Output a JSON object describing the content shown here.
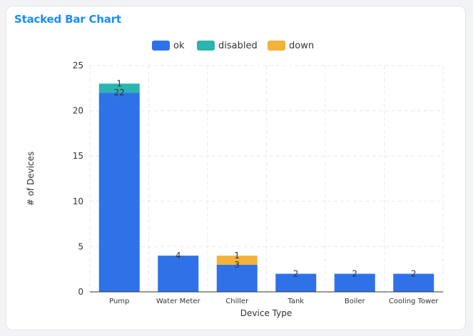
{
  "card": {
    "title": "Stacked Bar Chart"
  },
  "chart_data": {
    "type": "bar",
    "stacked": true,
    "title": "Stacked Bar Chart",
    "xlabel": "Device Type",
    "ylabel": "# of Devices",
    "categories": [
      "Pump",
      "Water Meter",
      "Chiller",
      "Tank",
      "Boiler",
      "Cooling Tower"
    ],
    "series": [
      {
        "name": "ok",
        "color": "#2f72e8",
        "values": [
          22,
          4,
          3,
          2,
          2,
          2
        ]
      },
      {
        "name": "disabled",
        "color": "#2bb5b1",
        "values": [
          1,
          0,
          0,
          0,
          0,
          0
        ]
      },
      {
        "name": "down",
        "color": "#f3b23a",
        "values": [
          0,
          0,
          1,
          0,
          0,
          0
        ]
      }
    ],
    "ylim": [
      0,
      25
    ],
    "yticks": [
      0,
      5,
      10,
      15,
      20,
      25
    ],
    "grid": true,
    "legend_position": "top-center",
    "data_labels": true
  }
}
